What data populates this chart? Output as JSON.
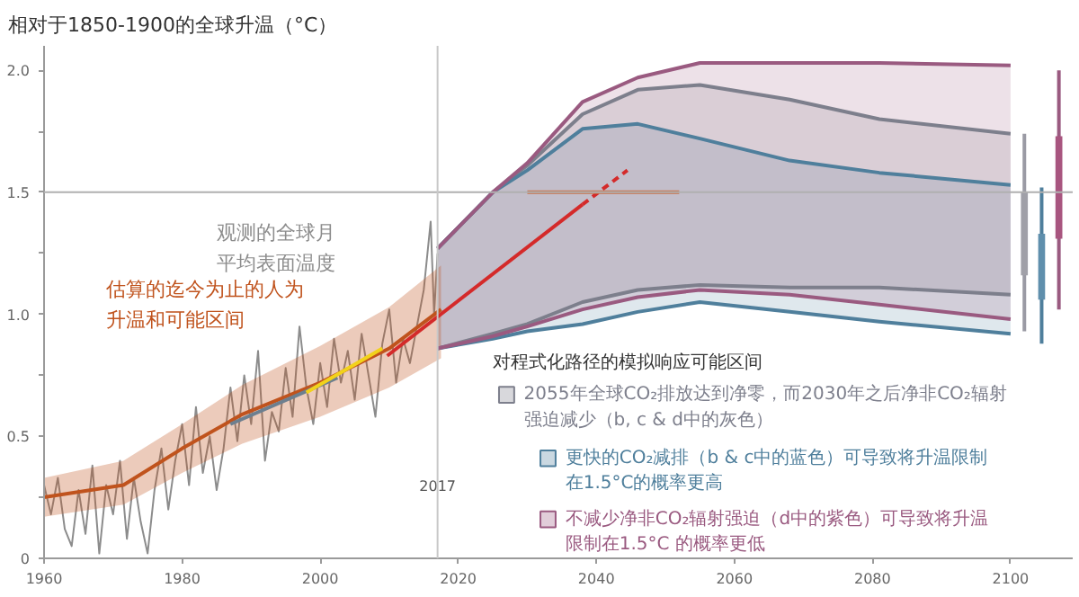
{
  "chart_data": {
    "type": "line",
    "ylabel": "相对于1850-1900的全球升温（°C）",
    "xlim": [
      1960,
      2109
    ],
    "ylim": [
      0,
      2.1
    ],
    "xticks": [
      1960,
      1980,
      2000,
      2020,
      2040,
      2060,
      2080,
      2100
    ],
    "yticks": [
      {
        "value": 0,
        "label": "0"
      },
      {
        "value": 0.25,
        "label": null
      },
      {
        "value": 0.5,
        "label": "0.5"
      },
      {
        "value": 0.75,
        "label": null
      },
      {
        "value": 1.0,
        "label": "1.0"
      },
      {
        "value": 1.25,
        "label": null
      },
      {
        "value": 1.5,
        "label": "1.5"
      },
      {
        "value": 1.75,
        "label": null
      },
      {
        "value": 2.0,
        "label": "2.0"
      }
    ],
    "grid": false,
    "legend": "bottom",
    "legend_title": "对程式化路径的模拟响应可能区间",
    "ref_lines": [
      {
        "axis": "y",
        "value": 1.5,
        "label": null,
        "color": "#b0b0b0"
      },
      {
        "axis": "x",
        "value": 2017,
        "label": "2017",
        "color": "#c8c8c8"
      }
    ],
    "series": [
      {
        "name": "观测的全球月平均表面温度",
        "color": "#8c8c8c",
        "x": [
          1960,
          1961,
          1962,
          1963,
          1964,
          1965,
          1966,
          1967,
          1968,
          1969,
          1970,
          1971,
          1972,
          1973,
          1974,
          1975,
          1976,
          1977,
          1978,
          1979,
          1980,
          1981,
          1982,
          1983,
          1984,
          1985,
          1986,
          1987,
          1988,
          1989,
          1990,
          1991,
          1992,
          1993,
          1994,
          1995,
          1996,
          1997,
          1998,
          1999,
          2000,
          2001,
          2002,
          2003,
          2004,
          2005,
          2006,
          2007,
          2008,
          2009,
          2010,
          2011,
          2012,
          2013,
          2014,
          2015,
          2016,
          2016.5,
          2017
        ],
        "values": [
          0.3,
          0.18,
          0.33,
          0.12,
          0.05,
          0.28,
          0.1,
          0.38,
          0.02,
          0.3,
          0.18,
          0.4,
          0.08,
          0.33,
          0.15,
          0.02,
          0.28,
          0.45,
          0.2,
          0.4,
          0.55,
          0.3,
          0.62,
          0.35,
          0.5,
          0.28,
          0.45,
          0.7,
          0.48,
          0.75,
          0.55,
          0.85,
          0.4,
          0.6,
          0.52,
          0.78,
          0.58,
          0.95,
          0.7,
          0.55,
          0.8,
          0.62,
          0.9,
          0.72,
          0.85,
          0.65,
          0.92,
          0.75,
          0.58,
          0.88,
          1.02,
          0.72,
          0.9,
          0.8,
          0.95,
          1.1,
          1.38,
          1.0,
          1.25
        ]
      },
      {
        "name": "估算的迄今为止的人为升温和可能区间",
        "color": "#c0531d",
        "x": [
          1960,
          1971.5,
          1980,
          1988.7,
          2000,
          2010,
          2017.5
        ],
        "values": [
          0.25,
          0.3,
          0.45,
          0.59,
          0.72,
          0.86,
          1.02
        ],
        "lower": [
          0.17,
          0.22,
          0.35,
          0.47,
          0.58,
          0.7,
          0.82
        ],
        "upper": [
          0.33,
          0.4,
          0.55,
          0.71,
          0.87,
          1.03,
          1.2
        ]
      },
      {
        "color": "#6d7f8f",
        "x": [
          1987,
          2002.5
        ],
        "values": [
          0.55,
          0.74
        ]
      },
      {
        "color": "#f2d21b",
        "x": [
          1998,
          2009
        ],
        "values": [
          0.68,
          0.86
        ]
      },
      {
        "color": "#d42a2a",
        "x": [
          2009.7,
          2038
        ],
        "values": [
          0.83,
          1.45
        ]
      },
      {
        "color": "#d42a2a",
        "line_style": "dashed",
        "x": [
          2038,
          2044.5
        ],
        "values": [
          1.45,
          1.59
        ]
      },
      {
        "color": "#c8704a",
        "x": [
          2030,
          2040,
          2052
        ],
        "values": [
          1.5,
          1.5,
          1.5
        ]
      },
      {
        "name": "2055年全球CO₂排放达到净零，而2030年之后净非CO₂辐射强迫减少（b, c & d中的灰色）",
        "color": "#7d7f8c",
        "x": [
          2017,
          2025,
          2030,
          2038,
          2046,
          2055,
          2068,
          2081,
          2100
        ],
        "values": [
          null,
          null,
          null,
          null,
          null,
          null,
          null,
          null,
          null
        ],
        "upper": [
          1.27,
          1.5,
          1.61,
          1.82,
          1.92,
          1.94,
          1.88,
          1.8,
          1.74
        ],
        "lower": [
          0.86,
          0.92,
          0.96,
          1.05,
          1.1,
          1.12,
          1.11,
          1.11,
          1.08
        ]
      },
      {
        "name": "更快的CO₂减排（b & c中的蓝色）可导致将升温限制在1.5°C的概率更高",
        "color": "#4f7f9c",
        "x": [
          2017,
          2025,
          2030,
          2038,
          2046,
          2055,
          2068,
          2081,
          2100
        ],
        "values": [
          null,
          null,
          null,
          null,
          null,
          null,
          null,
          null,
          null
        ],
        "upper": [
          1.27,
          1.5,
          1.59,
          1.76,
          1.78,
          1.72,
          1.63,
          1.58,
          1.53
        ],
        "lower": [
          0.86,
          0.9,
          0.93,
          0.96,
          1.01,
          1.05,
          1.01,
          0.97,
          0.92
        ]
      },
      {
        "name": "不减少净非CO₂辐射强迫（d中的紫色）可导致将升温限制在1.5°C 的概率更低",
        "color": "#9a5a80",
        "x": [
          2017,
          2025,
          2030,
          2038,
          2046,
          2055,
          2068,
          2081,
          2100
        ],
        "values": [
          null,
          null,
          null,
          null,
          null,
          null,
          null,
          null,
          null
        ],
        "upper": [
          1.27,
          1.5,
          1.62,
          1.87,
          1.97,
          2.03,
          2.03,
          2.03,
          2.02
        ],
        "lower": [
          0.86,
          0.91,
          0.95,
          1.02,
          1.07,
          1.1,
          1.08,
          1.04,
          0.98
        ]
      },
      {
        "color": "#7d7f8c",
        "x": [
          2017,
          2025,
          2030,
          2038,
          2046,
          2055,
          2068,
          2081,
          2100
        ],
        "values": [
          1.27,
          1.5,
          1.61,
          1.82,
          1.92,
          1.94,
          1.88,
          1.8,
          1.74
        ]
      },
      {
        "color": "#7d7f8c",
        "x": [
          2017,
          2025,
          2030,
          2038,
          2046,
          2055,
          2068,
          2081,
          2100
        ],
        "values": [
          0.86,
          0.92,
          0.96,
          1.05,
          1.1,
          1.12,
          1.11,
          1.11,
          1.08
        ]
      },
      {
        "color": "#4f7f9c",
        "x": [
          2017,
          2025,
          2030,
          2038,
          2046,
          2055,
          2068,
          2081,
          2100
        ],
        "values": [
          1.27,
          1.5,
          1.59,
          1.76,
          1.78,
          1.72,
          1.63,
          1.58,
          1.53
        ]
      },
      {
        "color": "#4f7f9c",
        "x": [
          2017,
          2025,
          2030,
          2038,
          2046,
          2055,
          2068,
          2081,
          2100
        ],
        "values": [
          0.86,
          0.9,
          0.93,
          0.96,
          1.01,
          1.05,
          1.01,
          0.97,
          0.92
        ]
      },
      {
        "color": "#9a5a80",
        "x": [
          2017,
          2025,
          2030,
          2038,
          2046,
          2055,
          2068,
          2081,
          2100
        ],
        "values": [
          1.27,
          1.5,
          1.62,
          1.87,
          1.97,
          2.03,
          2.03,
          2.03,
          2.02
        ]
      },
      {
        "color": "#9a5a80",
        "x": [
          2017,
          2025,
          2030,
          2038,
          2046,
          2055,
          2068,
          2081,
          2100
        ],
        "values": [
          0.86,
          0.91,
          0.95,
          1.02,
          1.07,
          1.1,
          1.08,
          1.04,
          0.98
        ]
      },
      {
        "color": "#9a9aa4",
        "x": [
          2102,
          2102
        ],
        "values": [
          0.93,
          1.74
        ]
      },
      {
        "color": "#4f7f9c",
        "x": [
          2104.5,
          2104.5
        ],
        "values": [
          0.88,
          1.52
        ]
      },
      {
        "color": "#9a5a80",
        "x": [
          2107,
          2107
        ],
        "values": [
          1.02,
          2.0
        ]
      },
      {
        "type": "bar",
        "colors": [
          "#a0a0a8",
          "#5f8fac",
          "#a8557f"
        ],
        "x": [
          2102,
          2104.5,
          2107
        ],
        "base": [
          1.16,
          1.06,
          1.31
        ],
        "values": [
          0.34,
          0.27,
          0.42
        ]
      }
    ]
  }
}
